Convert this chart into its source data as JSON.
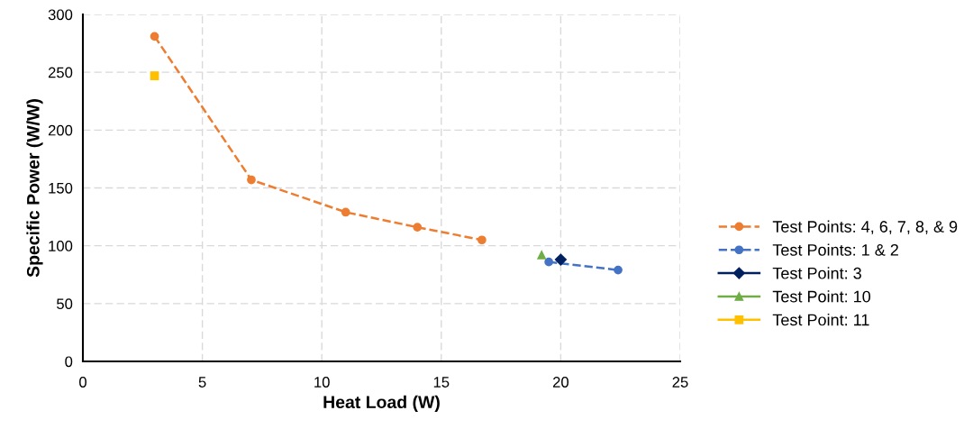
{
  "chart_data": {
    "type": "line",
    "xlabel": "Heat Load (W)",
    "ylabel": "Specific Power (W/W)",
    "xlim": [
      0,
      25
    ],
    "xticks": [
      0,
      5,
      10,
      15,
      20,
      25
    ],
    "ylim": [
      0,
      300
    ],
    "yticks": [
      0,
      50,
      100,
      150,
      200,
      250,
      300
    ],
    "grid": true,
    "legend": "right",
    "series": [
      {
        "name": "Test Points: 4, 6, 7, 8, & 9",
        "color": "#ed7d31",
        "marker": "circle",
        "line_style": "dashed",
        "x": [
          3,
          7.05,
          11,
          14,
          16.7
        ],
        "values": [
          281,
          157,
          129,
          116,
          105
        ]
      },
      {
        "name": "Test Points: 1 & 2",
        "color": "#4472c4",
        "marker": "circle",
        "line_style": "dashed",
        "x": [
          19.5,
          22.4
        ],
        "values": [
          86,
          79
        ]
      },
      {
        "name": "Test Point: 3",
        "color": "#002060",
        "marker": "diamond",
        "line_style": "solid",
        "x": [
          20
        ],
        "values": [
          88
        ]
      },
      {
        "name": "Test Point: 10",
        "color": "#70ad47",
        "marker": "triangle",
        "line_style": "solid",
        "x": [
          19.2
        ],
        "values": [
          92
        ]
      },
      {
        "name": "Test Point: 11",
        "color": "#ffc000",
        "marker": "square",
        "line_style": "solid",
        "x": [
          3
        ],
        "values": [
          247
        ]
      }
    ]
  }
}
